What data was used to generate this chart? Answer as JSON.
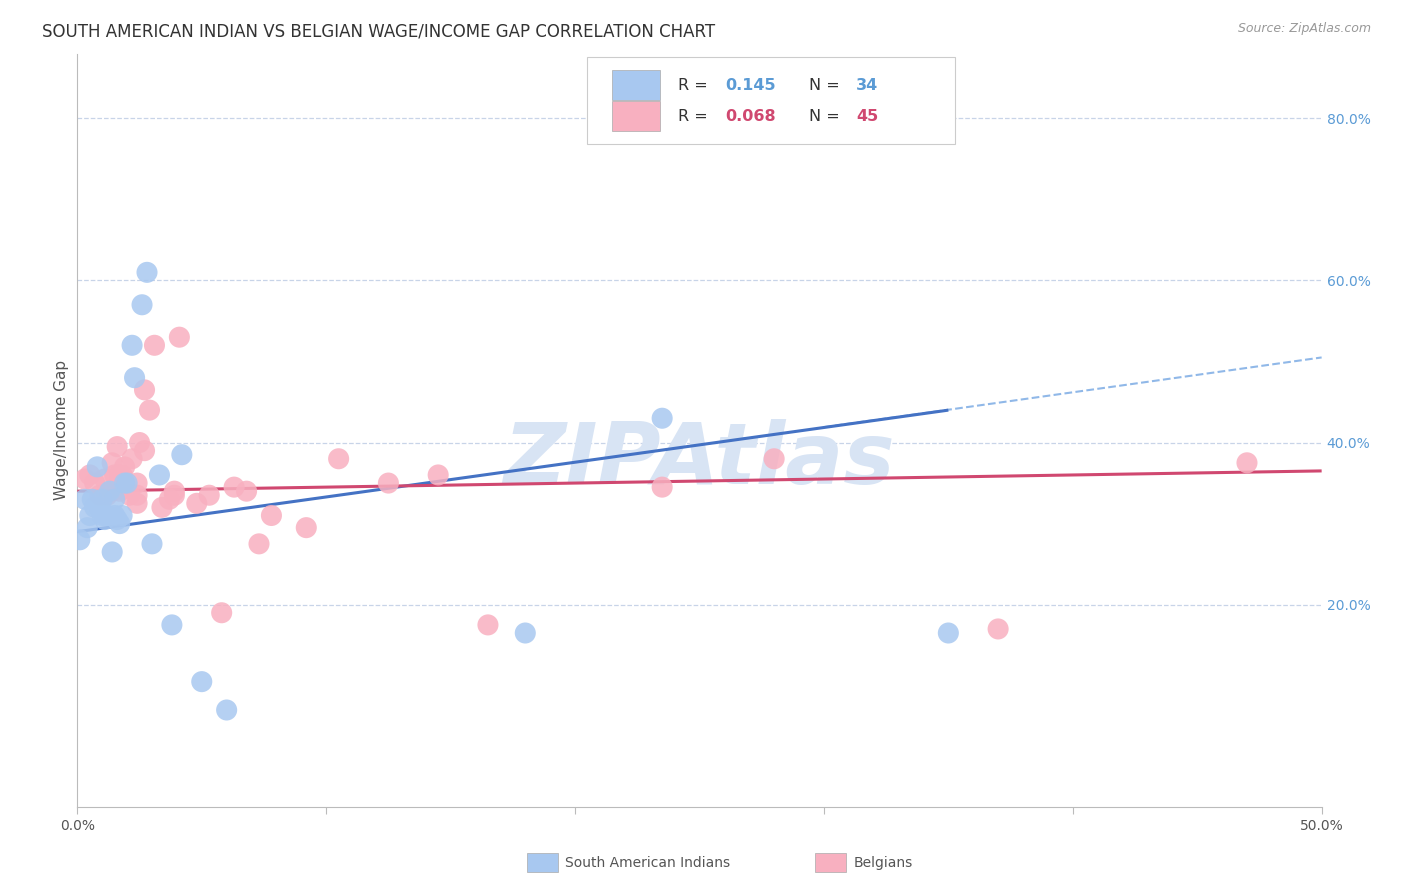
{
  "title": "SOUTH AMERICAN INDIAN VS BELGIAN WAGE/INCOME GAP CORRELATION CHART",
  "source": "Source: ZipAtlas.com",
  "ylabel": "Wage/Income Gap",
  "xlim": [
    0.0,
    0.5
  ],
  "ylim": [
    -0.05,
    0.88
  ],
  "yticks_right": [
    0.2,
    0.4,
    0.6,
    0.8
  ],
  "ytick_labels_right": [
    "20.0%",
    "40.0%",
    "60.0%",
    "80.0%"
  ],
  "color_blue_fill": "#A8C8F0",
  "color_blue_line": "#4472C4",
  "color_pink_fill": "#F8B0C0",
  "color_pink_line": "#D04870",
  "color_dashed": "#90B8E8",
  "color_right_axis": "#5B9BD5",
  "color_legend_text_dark": "#333333",
  "watermark_text": "ZIPAtlas",
  "watermark_color": "#D8E4F4",
  "grid_color": "#C8D4E8",
  "background_color": "#FFFFFF",
  "title_fontsize": 12,
  "tick_fontsize": 10,
  "legend_r1": "0.145",
  "legend_n1": "34",
  "legend_r2": "0.068",
  "legend_n2": "45",
  "blue_points_x": [
    0.001,
    0.003,
    0.004,
    0.005,
    0.006,
    0.007,
    0.008,
    0.009,
    0.01,
    0.01,
    0.011,
    0.012,
    0.013,
    0.014,
    0.015,
    0.015,
    0.016,
    0.017,
    0.018,
    0.019,
    0.02,
    0.022,
    0.023,
    0.026,
    0.028,
    0.03,
    0.033,
    0.038,
    0.042,
    0.05,
    0.06,
    0.18,
    0.235,
    0.35
  ],
  "blue_points_y": [
    0.28,
    0.33,
    0.295,
    0.31,
    0.33,
    0.32,
    0.37,
    0.32,
    0.33,
    0.31,
    0.305,
    0.31,
    0.34,
    0.265,
    0.31,
    0.33,
    0.305,
    0.3,
    0.31,
    0.35,
    0.35,
    0.52,
    0.48,
    0.57,
    0.61,
    0.275,
    0.36,
    0.175,
    0.385,
    0.105,
    0.07,
    0.165,
    0.43,
    0.165
  ],
  "pink_points_x": [
    0.003,
    0.005,
    0.007,
    0.009,
    0.011,
    0.012,
    0.014,
    0.014,
    0.015,
    0.016,
    0.017,
    0.017,
    0.018,
    0.019,
    0.021,
    0.022,
    0.024,
    0.024,
    0.024,
    0.025,
    0.027,
    0.027,
    0.029,
    0.031,
    0.034,
    0.037,
    0.039,
    0.039,
    0.041,
    0.048,
    0.053,
    0.058,
    0.063,
    0.068,
    0.073,
    0.078,
    0.092,
    0.105,
    0.125,
    0.145,
    0.165,
    0.235,
    0.28,
    0.37,
    0.47
  ],
  "pink_points_y": [
    0.355,
    0.36,
    0.35,
    0.335,
    0.355,
    0.335,
    0.34,
    0.375,
    0.36,
    0.395,
    0.34,
    0.36,
    0.36,
    0.37,
    0.335,
    0.38,
    0.325,
    0.35,
    0.335,
    0.4,
    0.39,
    0.465,
    0.44,
    0.52,
    0.32,
    0.33,
    0.335,
    0.34,
    0.53,
    0.325,
    0.335,
    0.19,
    0.345,
    0.34,
    0.275,
    0.31,
    0.295,
    0.38,
    0.35,
    0.36,
    0.175,
    0.345,
    0.38,
    0.17,
    0.375
  ],
  "blue_line_x0": 0.0,
  "blue_line_x1": 0.35,
  "blue_line_y0": 0.29,
  "blue_line_y1": 0.44,
  "pink_line_x0": 0.0,
  "pink_line_x1": 0.5,
  "pink_line_y0": 0.34,
  "pink_line_y1": 0.365,
  "dashed_line_x0": 0.3,
  "dashed_line_x1": 0.5,
  "dashed_line_y0": 0.419,
  "dashed_line_y1": 0.505
}
